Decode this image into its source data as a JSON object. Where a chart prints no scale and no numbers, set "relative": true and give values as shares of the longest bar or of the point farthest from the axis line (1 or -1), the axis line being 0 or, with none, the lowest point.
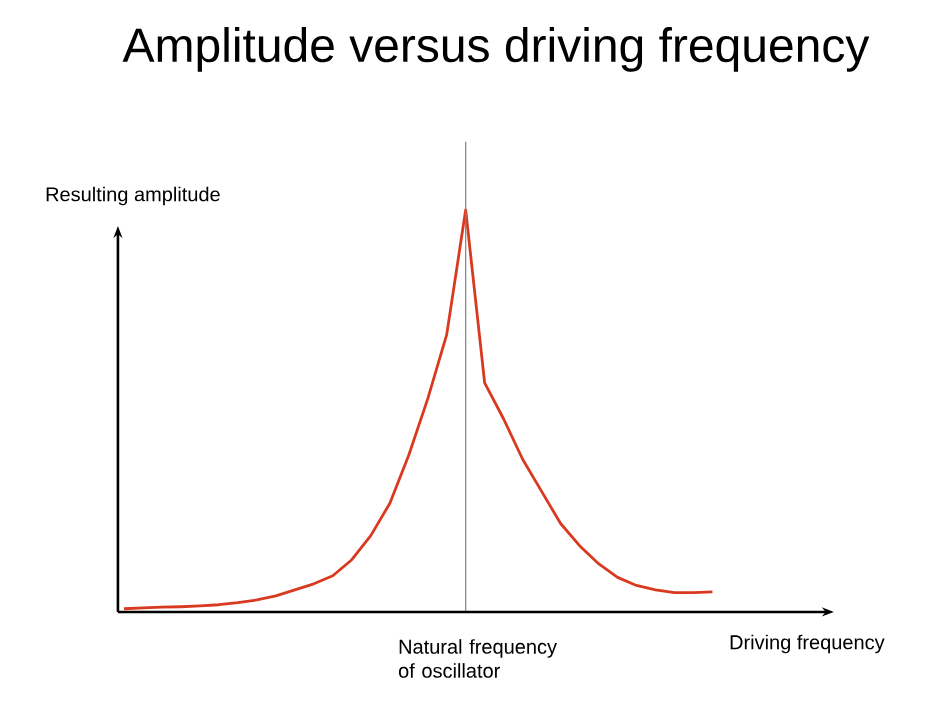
{
  "chart_data": {
    "type": "line",
    "title": "Amplitude versus driving frequency",
    "xlabel": "Driving frequency",
    "ylabel": "Resulting amplitude",
    "relative": true,
    "categories": [
      null,
      null,
      null,
      null,
      null,
      null,
      null,
      null,
      null,
      null,
      null,
      null,
      null,
      null,
      null,
      null,
      null,
      null,
      null,
      null,
      null,
      null,
      null,
      null,
      null,
      null,
      null,
      null,
      null,
      null,
      null,
      null
    ],
    "series": [
      {
        "color": "#d93a1f",
        "values": [
          0.008,
          0.01,
          0.012,
          0.013,
          0.015,
          0.018,
          0.023,
          0.03,
          0.04,
          0.055,
          0.07,
          0.09,
          0.13,
          0.19,
          0.27,
          0.39,
          0.53,
          0.69,
          1.0,
          0.57,
          0.48,
          0.38,
          0.3,
          0.22,
          0.165,
          0.12,
          0.086,
          0.066,
          0.055,
          0.048,
          0.048,
          0.05
        ]
      }
    ],
    "annotations": [
      "Natural frequency\nof oscillator"
    ]
  }
}
